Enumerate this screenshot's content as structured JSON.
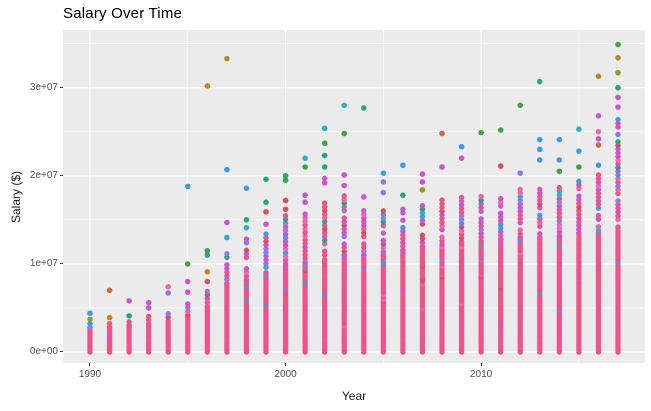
{
  "chart_data": {
    "type": "scatter",
    "title": "Salary Over Time",
    "xlabel": "Year",
    "ylabel": "Salary ($)",
    "x_ticks": [
      1990,
      2000,
      2010
    ],
    "x_minor_ticks": [
      1995,
      2005,
      2015
    ],
    "y_ticks": [
      {
        "value": 0,
        "label": "0e+00"
      },
      {
        "value": 10000000,
        "label": "1e+07"
      },
      {
        "value": 20000000,
        "label": "2e+07"
      },
      {
        "value": 30000000,
        "label": "3e+07"
      }
    ],
    "y_minor_ticks": [
      5000000,
      15000000,
      25000000,
      35000000
    ],
    "xlim": [
      1988.62,
      2018.38
    ],
    "ylim": [
      -1250000,
      36550000
    ],
    "grid": true,
    "legend": "none",
    "panel_bg": "#EBEBEB",
    "grid_color": "#FFFFFF",
    "axis_text_color": "#4D4D4D",
    "tick_mark_color": "#333333",
    "point_palette": {
      "pink": "#F0538C",
      "brightpink": "#F763A8",
      "magenta": "#CC55CF",
      "violet": "#8B7BE8",
      "blue": "#3F9BE9",
      "cyan": "#2EAFC5",
      "teal": "#23A87D",
      "green": "#41A33D",
      "olive": "#8F9B1F",
      "gold": "#BB8A1F",
      "orange": "#CE6A3E",
      "red": "#D94F62"
    },
    "value_unit": 10000000,
    "columns_note": "per year: dense = top of solid pink stack, mixed = top of multicolor stack, outliers = [value, color] in units of 1e7 $",
    "years": [
      {
        "year": 1990,
        "dense": 0.28,
        "mixed": 0.34,
        "outliers": [
          [
            0.37,
            "olive"
          ],
          [
            0.44,
            "blue"
          ]
        ]
      },
      {
        "year": 1991,
        "dense": 0.28,
        "mixed": 0.36,
        "outliers": [
          [
            0.39,
            "gold"
          ],
          [
            0.7,
            "orange"
          ]
        ]
      },
      {
        "year": 1992,
        "dense": 0.3,
        "mixed": 0.38,
        "outliers": [
          [
            0.41,
            "teal"
          ],
          [
            0.58,
            "magenta"
          ]
        ]
      },
      {
        "year": 1993,
        "dense": 0.32,
        "mixed": 0.42,
        "outliers": [
          [
            0.5,
            "magenta"
          ],
          [
            0.56,
            "magenta"
          ]
        ]
      },
      {
        "year": 1994,
        "dense": 0.35,
        "mixed": 0.47,
        "outliers": [
          [
            0.67,
            "violet"
          ],
          [
            0.74,
            "brightpink"
          ]
        ]
      },
      {
        "year": 1995,
        "dense": 0.42,
        "mixed": 0.57,
        "outliers": [
          [
            0.68,
            "magenta"
          ],
          [
            0.8,
            "magenta"
          ],
          [
            1.0,
            "green"
          ],
          [
            1.88,
            "blue"
          ]
        ]
      },
      {
        "year": 1996,
        "dense": 0.52,
        "mixed": 0.7,
        "outliers": [
          [
            0.8,
            "red"
          ],
          [
            0.91,
            "gold"
          ],
          [
            1.1,
            "teal"
          ],
          [
            1.15,
            "green"
          ],
          [
            3.02,
            "gold"
          ]
        ]
      },
      {
        "year": 1997,
        "dense": 0.78,
        "mixed": 1.15,
        "outliers": [
          [
            1.3,
            "cyan"
          ],
          [
            1.47,
            "magenta"
          ],
          [
            2.07,
            "blue"
          ],
          [
            3.33,
            "gold"
          ]
        ]
      },
      {
        "year": 1998,
        "dense": 0.82,
        "mixed": 1.3,
        "outliers": [
          [
            1.41,
            "cyan"
          ],
          [
            1.5,
            "teal"
          ],
          [
            1.86,
            "blue"
          ]
        ]
      },
      {
        "year": 1999,
        "dense": 0.92,
        "mixed": 1.35,
        "outliers": [
          [
            1.45,
            "magenta"
          ],
          [
            1.59,
            "red"
          ],
          [
            1.7,
            "teal"
          ],
          [
            1.96,
            "teal"
          ]
        ]
      },
      {
        "year": 2000,
        "dense": 1.0,
        "mixed": 1.55,
        "outliers": [
          [
            1.62,
            "red"
          ],
          [
            1.72,
            "red"
          ],
          [
            1.95,
            "green"
          ],
          [
            2.0,
            "teal"
          ]
        ]
      },
      {
        "year": 2001,
        "dense": 1.02,
        "mixed": 1.6,
        "outliers": [
          [
            1.7,
            "magenta"
          ],
          [
            1.78,
            "magenta"
          ],
          [
            2.1,
            "green"
          ],
          [
            2.2,
            "cyan"
          ]
        ]
      },
      {
        "year": 2002,
        "dense": 1.06,
        "mixed": 1.7,
        "outliers": [
          [
            1.92,
            "magenta"
          ],
          [
            1.97,
            "magenta"
          ],
          [
            2.1,
            "teal"
          ],
          [
            2.23,
            "teal"
          ],
          [
            2.37,
            "green"
          ],
          [
            2.54,
            "cyan"
          ]
        ]
      },
      {
        "year": 2003,
        "dense": 1.1,
        "mixed": 1.8,
        "outliers": [
          [
            1.89,
            "magenta"
          ],
          [
            2.01,
            "magenta"
          ],
          [
            2.48,
            "green"
          ],
          [
            2.8,
            "cyan"
          ]
        ]
      },
      {
        "year": 2004,
        "dense": 1.1,
        "mixed": 1.62,
        "outliers": [
          [
            1.76,
            "magenta"
          ],
          [
            2.77,
            "teal"
          ]
        ]
      },
      {
        "year": 2005,
        "dense": 1.14,
        "mixed": 1.62,
        "outliers": [
          [
            1.81,
            "violet"
          ],
          [
            1.93,
            "violet"
          ],
          [
            2.03,
            "cyan"
          ]
        ]
      },
      {
        "year": 2006,
        "dense": 1.16,
        "mixed": 1.66,
        "outliers": [
          [
            1.78,
            "teal"
          ],
          [
            2.12,
            "blue"
          ]
        ]
      },
      {
        "year": 2007,
        "dense": 1.2,
        "mixed": 1.7,
        "outliers": [
          [
            1.84,
            "olive"
          ],
          [
            1.93,
            "magenta"
          ],
          [
            2.02,
            "magenta"
          ]
        ]
      },
      {
        "year": 2008,
        "dense": 1.22,
        "mixed": 1.76,
        "outliers": [
          [
            2.1,
            "magenta"
          ],
          [
            2.48,
            "orange"
          ]
        ]
      },
      {
        "year": 2009,
        "dense": 1.25,
        "mixed": 1.76,
        "outliers": [
          [
            2.2,
            "magenta"
          ],
          [
            2.33,
            "blue"
          ]
        ]
      },
      {
        "year": 2010,
        "dense": 1.26,
        "mixed": 1.8,
        "outliers": [
          [
            2.49,
            "green"
          ]
        ]
      },
      {
        "year": 2011,
        "dense": 1.28,
        "mixed": 1.8,
        "outliers": [
          [
            2.11,
            "red"
          ],
          [
            2.52,
            "green"
          ]
        ]
      },
      {
        "year": 2012,
        "dense": 1.3,
        "mixed": 1.85,
        "outliers": [
          [
            2.03,
            "violet"
          ],
          [
            2.8,
            "green"
          ]
        ]
      },
      {
        "year": 2013,
        "dense": 1.3,
        "mixed": 1.86,
        "outliers": [
          [
            2.18,
            "blue"
          ],
          [
            2.3,
            "blue"
          ],
          [
            2.41,
            "blue"
          ],
          [
            3.07,
            "teal"
          ]
        ]
      },
      {
        "year": 2014,
        "dense": 1.32,
        "mixed": 1.9,
        "outliers": [
          [
            2.05,
            "green"
          ],
          [
            2.18,
            "blue"
          ],
          [
            2.41,
            "blue"
          ]
        ]
      },
      {
        "year": 2015,
        "dense": 1.35,
        "mixed": 1.95,
        "outliers": [
          [
            2.1,
            "green"
          ],
          [
            2.28,
            "blue"
          ],
          [
            2.53,
            "cyan"
          ]
        ]
      },
      {
        "year": 2016,
        "dense": 1.38,
        "mixed": 2.05,
        "outliers": [
          [
            2.12,
            "blue"
          ],
          [
            2.35,
            "orange"
          ],
          [
            2.42,
            "magenta"
          ],
          [
            2.5,
            "brightpink"
          ],
          [
            2.68,
            "magenta"
          ],
          [
            3.13,
            "gold"
          ]
        ]
      },
      {
        "year": 2017,
        "dense": 1.42,
        "mixed": 2.65,
        "outliers": [
          [
            2.78,
            "magenta"
          ],
          [
            2.89,
            "magenta"
          ],
          [
            3.0,
            "teal"
          ],
          [
            3.17,
            "olive"
          ],
          [
            3.34,
            "gold"
          ],
          [
            3.49,
            "green"
          ]
        ]
      }
    ]
  }
}
